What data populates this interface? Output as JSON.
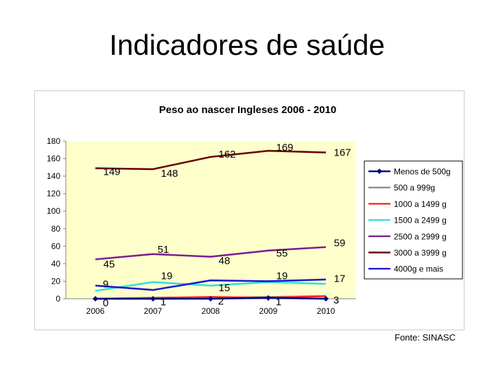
{
  "slide": {
    "title": "Indicadores de saúde",
    "source": "Fonte: SINASC"
  },
  "chart_data": {
    "type": "line",
    "title": "Peso ao nascer Ingleses 2006 - 2010",
    "xlabel": "",
    "ylabel": "",
    "x": [
      "2006",
      "2007",
      "2008",
      "2009",
      "2010"
    ],
    "ylim": [
      0,
      180
    ],
    "yticks": [
      0,
      20,
      40,
      60,
      80,
      100,
      120,
      140,
      160,
      180
    ],
    "plot_background": "#ffffcc",
    "legend_position": "right",
    "series": [
      {
        "name": "Menos de 500g",
        "color": "#000080",
        "marker": "diamond",
        "values": [
          0,
          0,
          0,
          1,
          0
        ],
        "labels": []
      },
      {
        "name": "500 a 999g",
        "color": "#8c8c8c",
        "values": [
          0,
          0,
          1,
          2,
          3
        ],
        "labels": []
      },
      {
        "name": "1000 a 1499 g",
        "color": "#ff2020",
        "values": [
          0,
          1,
          2,
          1,
          3
        ],
        "labels": [
          "0",
          "1",
          "2",
          "1",
          "3"
        ]
      },
      {
        "name": "1500 a 2499 g",
        "color": "#33e0e0",
        "values": [
          9,
          19,
          15,
          19,
          17
        ],
        "labels": [
          "9",
          "19",
          "15",
          "19",
          "17"
        ]
      },
      {
        "name": "2500 a 2999 g",
        "color": "#7b1f8f",
        "values": [
          45,
          51,
          48,
          55,
          59
        ],
        "labels": [
          "45",
          "51",
          "48",
          "55",
          "59"
        ]
      },
      {
        "name": "3000 a 3999 g",
        "color": "#6b0000",
        "values": [
          149,
          148,
          162,
          169,
          167
        ],
        "labels": [
          "149",
          "148",
          "162",
          "169",
          "167"
        ]
      },
      {
        "name": "4000g e mais",
        "color": "#1a1ad0",
        "values": [
          15,
          10,
          21,
          20,
          22
        ],
        "labels": []
      }
    ]
  }
}
